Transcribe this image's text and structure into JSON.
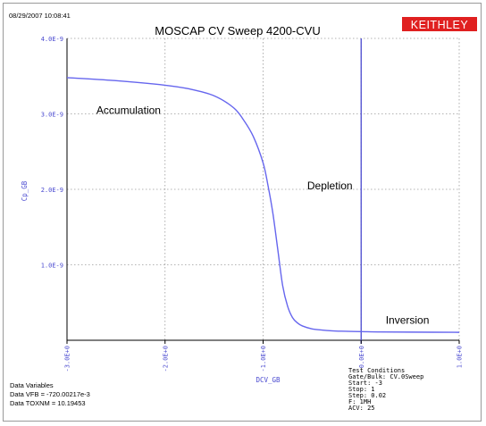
{
  "header": {
    "timestamp": "08/29/2007 10:08:41",
    "brand": "KEITHLEY"
  },
  "colors": {
    "curve": "#6666ee",
    "axis_blue": "#4a4ad0",
    "brand_bg": "#e02020",
    "brand_fg": "#ffffff",
    "grid": "#9a9a9a",
    "text": "#000000"
  },
  "chart_data": {
    "type": "line",
    "title": "MOSCAP CV Sweep 4200-CVU",
    "xlabel": "DCV_GB",
    "ylabel": "Cp_GB",
    "xlim": [
      -3.0,
      1.0
    ],
    "ylim": [
      0,
      4e-09
    ],
    "grid": true,
    "x_ticks": [
      -3.0,
      -2.0,
      -1.0,
      0.0,
      1.0
    ],
    "x_tick_labels": [
      "-3.0E+0",
      "-2.0E+0",
      "-1.0E+0",
      "0.0E+0",
      "1.0E+0"
    ],
    "y_ticks": [
      1e-09,
      2e-09,
      3e-09,
      4e-09
    ],
    "y_tick_labels": [
      "1.0E-9",
      "2.0E-9",
      "3.0E-9",
      "4.0E-9"
    ],
    "series": [
      {
        "x": [
          -3.0,
          -2.5,
          -2.0,
          -1.75,
          -1.5,
          -1.3,
          -1.2,
          -1.1,
          -1.0,
          -0.95,
          -0.9,
          -0.85,
          -0.8,
          -0.75,
          -0.7,
          -0.65,
          -0.6,
          -0.5,
          -0.4,
          -0.3,
          -0.2,
          0.0,
          0.2,
          0.5,
          1.0
        ],
        "y": [
          3.48e-09,
          3.44e-09,
          3.38e-09,
          3.33e-09,
          3.24e-09,
          3.08e-09,
          2.92e-09,
          2.7e-09,
          2.35e-09,
          2.05e-09,
          1.68e-09,
          1.2e-09,
          7.2e-10,
          4.5e-10,
          3e-10,
          2.3e-10,
          1.9e-10,
          1.5e-10,
          1.35e-10,
          1.25e-10,
          1.2e-10,
          1.15e-10,
          1.1e-10,
          1.08e-10,
          1.05e-10
        ]
      }
    ],
    "vertical_marker_x": 0.0,
    "annotations": [
      {
        "text": "Accumulation",
        "x": -2.7,
        "y": 3e-09
      },
      {
        "text": "Depletion",
        "x": -0.55,
        "y": 2e-09
      },
      {
        "text": "Inversion",
        "x": 0.25,
        "y": 2.2e-10
      }
    ]
  },
  "data_variables": {
    "title": "Data Variables",
    "lines": [
      "Data VFB = -720.00217e-3",
      "Data TOXNM = 10.19453"
    ]
  },
  "test_conditions": {
    "lines": [
      "Test Conditions",
      "Gate/Bulk: CV.0Sweep",
      "Start: -3",
      "Stop: 1",
      "Step: 0.02",
      "F: 1MH",
      "ACV: 25"
    ]
  }
}
